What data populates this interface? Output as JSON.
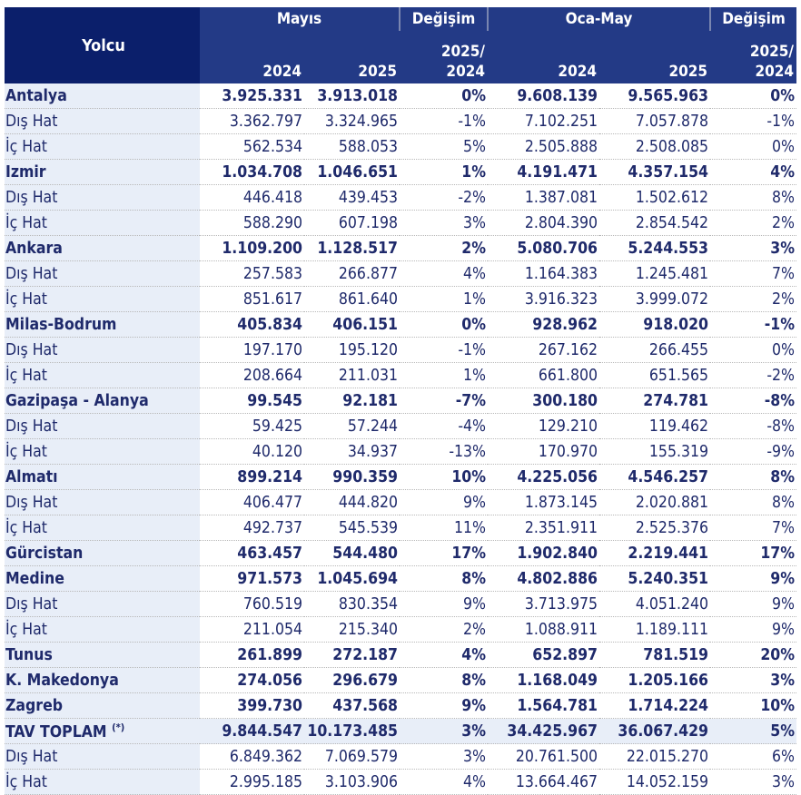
{
  "header": {
    "label": "Yolcu",
    "group1": "Mayıs",
    "change1": "Değişim",
    "group2": "Oca-May",
    "change2": "Değişim",
    "y2024": "2024",
    "y2025": "2025",
    "ratio_top": "2025/",
    "ratio_bottom": "2024"
  },
  "rows": [
    {
      "label": "Antalya",
      "type": "group",
      "values": [
        "3.925.331",
        "3.913.018",
        "0%",
        "9.608.139",
        "9.565.963",
        "0%"
      ]
    },
    {
      "label": "Dış Hat",
      "type": "sub",
      "values": [
        "3.362.797",
        "3.324.965",
        "-1%",
        "7.102.251",
        "7.057.878",
        "-1%"
      ]
    },
    {
      "label": "İç Hat",
      "type": "sub",
      "values": [
        "562.534",
        "588.053",
        "5%",
        "2.505.888",
        "2.508.085",
        "0%"
      ]
    },
    {
      "label": "Izmir",
      "type": "group",
      "values": [
        "1.034.708",
        "1.046.651",
        "1%",
        "4.191.471",
        "4.357.154",
        "4%"
      ]
    },
    {
      "label": "Dış Hat",
      "type": "sub",
      "values": [
        "446.418",
        "439.453",
        "-2%",
        "1.387.081",
        "1.502.612",
        "8%"
      ]
    },
    {
      "label": "İç Hat",
      "type": "sub",
      "values": [
        "588.290",
        "607.198",
        "3%",
        "2.804.390",
        "2.854.542",
        "2%"
      ]
    },
    {
      "label": "Ankara",
      "type": "group",
      "values": [
        "1.109.200",
        "1.128.517",
        "2%",
        "5.080.706",
        "5.244.553",
        "3%"
      ]
    },
    {
      "label": "Dış Hat",
      "type": "sub",
      "values": [
        "257.583",
        "266.877",
        "4%",
        "1.164.383",
        "1.245.481",
        "7%"
      ]
    },
    {
      "label": "İç Hat",
      "type": "sub",
      "values": [
        "851.617",
        "861.640",
        "1%",
        "3.916.323",
        "3.999.072",
        "2%"
      ]
    },
    {
      "label": "Milas-Bodrum",
      "type": "group",
      "values": [
        "405.834",
        "406.151",
        "0%",
        "928.962",
        "918.020",
        "-1%"
      ]
    },
    {
      "label": "Dış Hat",
      "type": "sub",
      "values": [
        "197.170",
        "195.120",
        "-1%",
        "267.162",
        "266.455",
        "0%"
      ]
    },
    {
      "label": "İç Hat",
      "type": "sub",
      "values": [
        "208.664",
        "211.031",
        "1%",
        "661.800",
        "651.565",
        "-2%"
      ]
    },
    {
      "label": "Gazipaşa - Alanya",
      "type": "group",
      "values": [
        "99.545",
        "92.181",
        "-7%",
        "300.180",
        "274.781",
        "-8%"
      ]
    },
    {
      "label": "Dış Hat",
      "type": "sub",
      "values": [
        "59.425",
        "57.244",
        "-4%",
        "129.210",
        "119.462",
        "-8%"
      ]
    },
    {
      "label": "İç Hat",
      "type": "sub",
      "values": [
        "40.120",
        "34.937",
        "-13%",
        "170.970",
        "155.319",
        "-9%"
      ]
    },
    {
      "label": "Almatı",
      "type": "group",
      "values": [
        "899.214",
        "990.359",
        "10%",
        "4.225.056",
        "4.546.257",
        "8%"
      ]
    },
    {
      "label": "Dış Hat",
      "type": "sub",
      "values": [
        "406.477",
        "444.820",
        "9%",
        "1.873.145",
        "2.020.881",
        "8%"
      ]
    },
    {
      "label": "İç Hat",
      "type": "sub",
      "values": [
        "492.737",
        "545.539",
        "11%",
        "2.351.911",
        "2.525.376",
        "7%"
      ]
    },
    {
      "label": "Gürcistan",
      "type": "group",
      "values": [
        "463.457",
        "544.480",
        "17%",
        "1.902.840",
        "2.219.441",
        "17%"
      ]
    },
    {
      "label": "Medine",
      "type": "group",
      "values": [
        "971.573",
        "1.045.694",
        "8%",
        "4.802.886",
        "5.240.351",
        "9%"
      ]
    },
    {
      "label": "Dış Hat",
      "type": "sub",
      "values": [
        "760.519",
        "830.354",
        "9%",
        "3.713.975",
        "4.051.240",
        "9%"
      ]
    },
    {
      "label": "İç Hat",
      "type": "sub",
      "values": [
        "211.054",
        "215.340",
        "2%",
        "1.088.911",
        "1.189.111",
        "9%"
      ]
    },
    {
      "label": "Tunus",
      "type": "group",
      "values": [
        "261.899",
        "272.187",
        "4%",
        "652.897",
        "781.519",
        "20%"
      ]
    },
    {
      "label": "K. Makedonya",
      "type": "group",
      "values": [
        "274.056",
        "296.679",
        "8%",
        "1.168.049",
        "1.205.166",
        "3%"
      ]
    },
    {
      "label": "Zagreb",
      "type": "group",
      "values": [
        "399.730",
        "437.568",
        "9%",
        "1.564.781",
        "1.714.224",
        "10%"
      ]
    },
    {
      "label": "TAV TOPLAM",
      "note": "(*)",
      "type": "total",
      "values": [
        "9.844.547",
        "10.173.485",
        "3%",
        "34.425.967",
        "36.067.429",
        "5%"
      ]
    },
    {
      "label": "Dış Hat",
      "type": "sub",
      "values": [
        "6.849.362",
        "7.069.579",
        "3%",
        "20.761.500",
        "22.015.270",
        "6%"
      ]
    },
    {
      "label": "İç Hat",
      "type": "sub",
      "values": [
        "2.995.185",
        "3.103.906",
        "4%",
        "13.664.467",
        "14.052.159",
        "3%"
      ]
    }
  ]
}
